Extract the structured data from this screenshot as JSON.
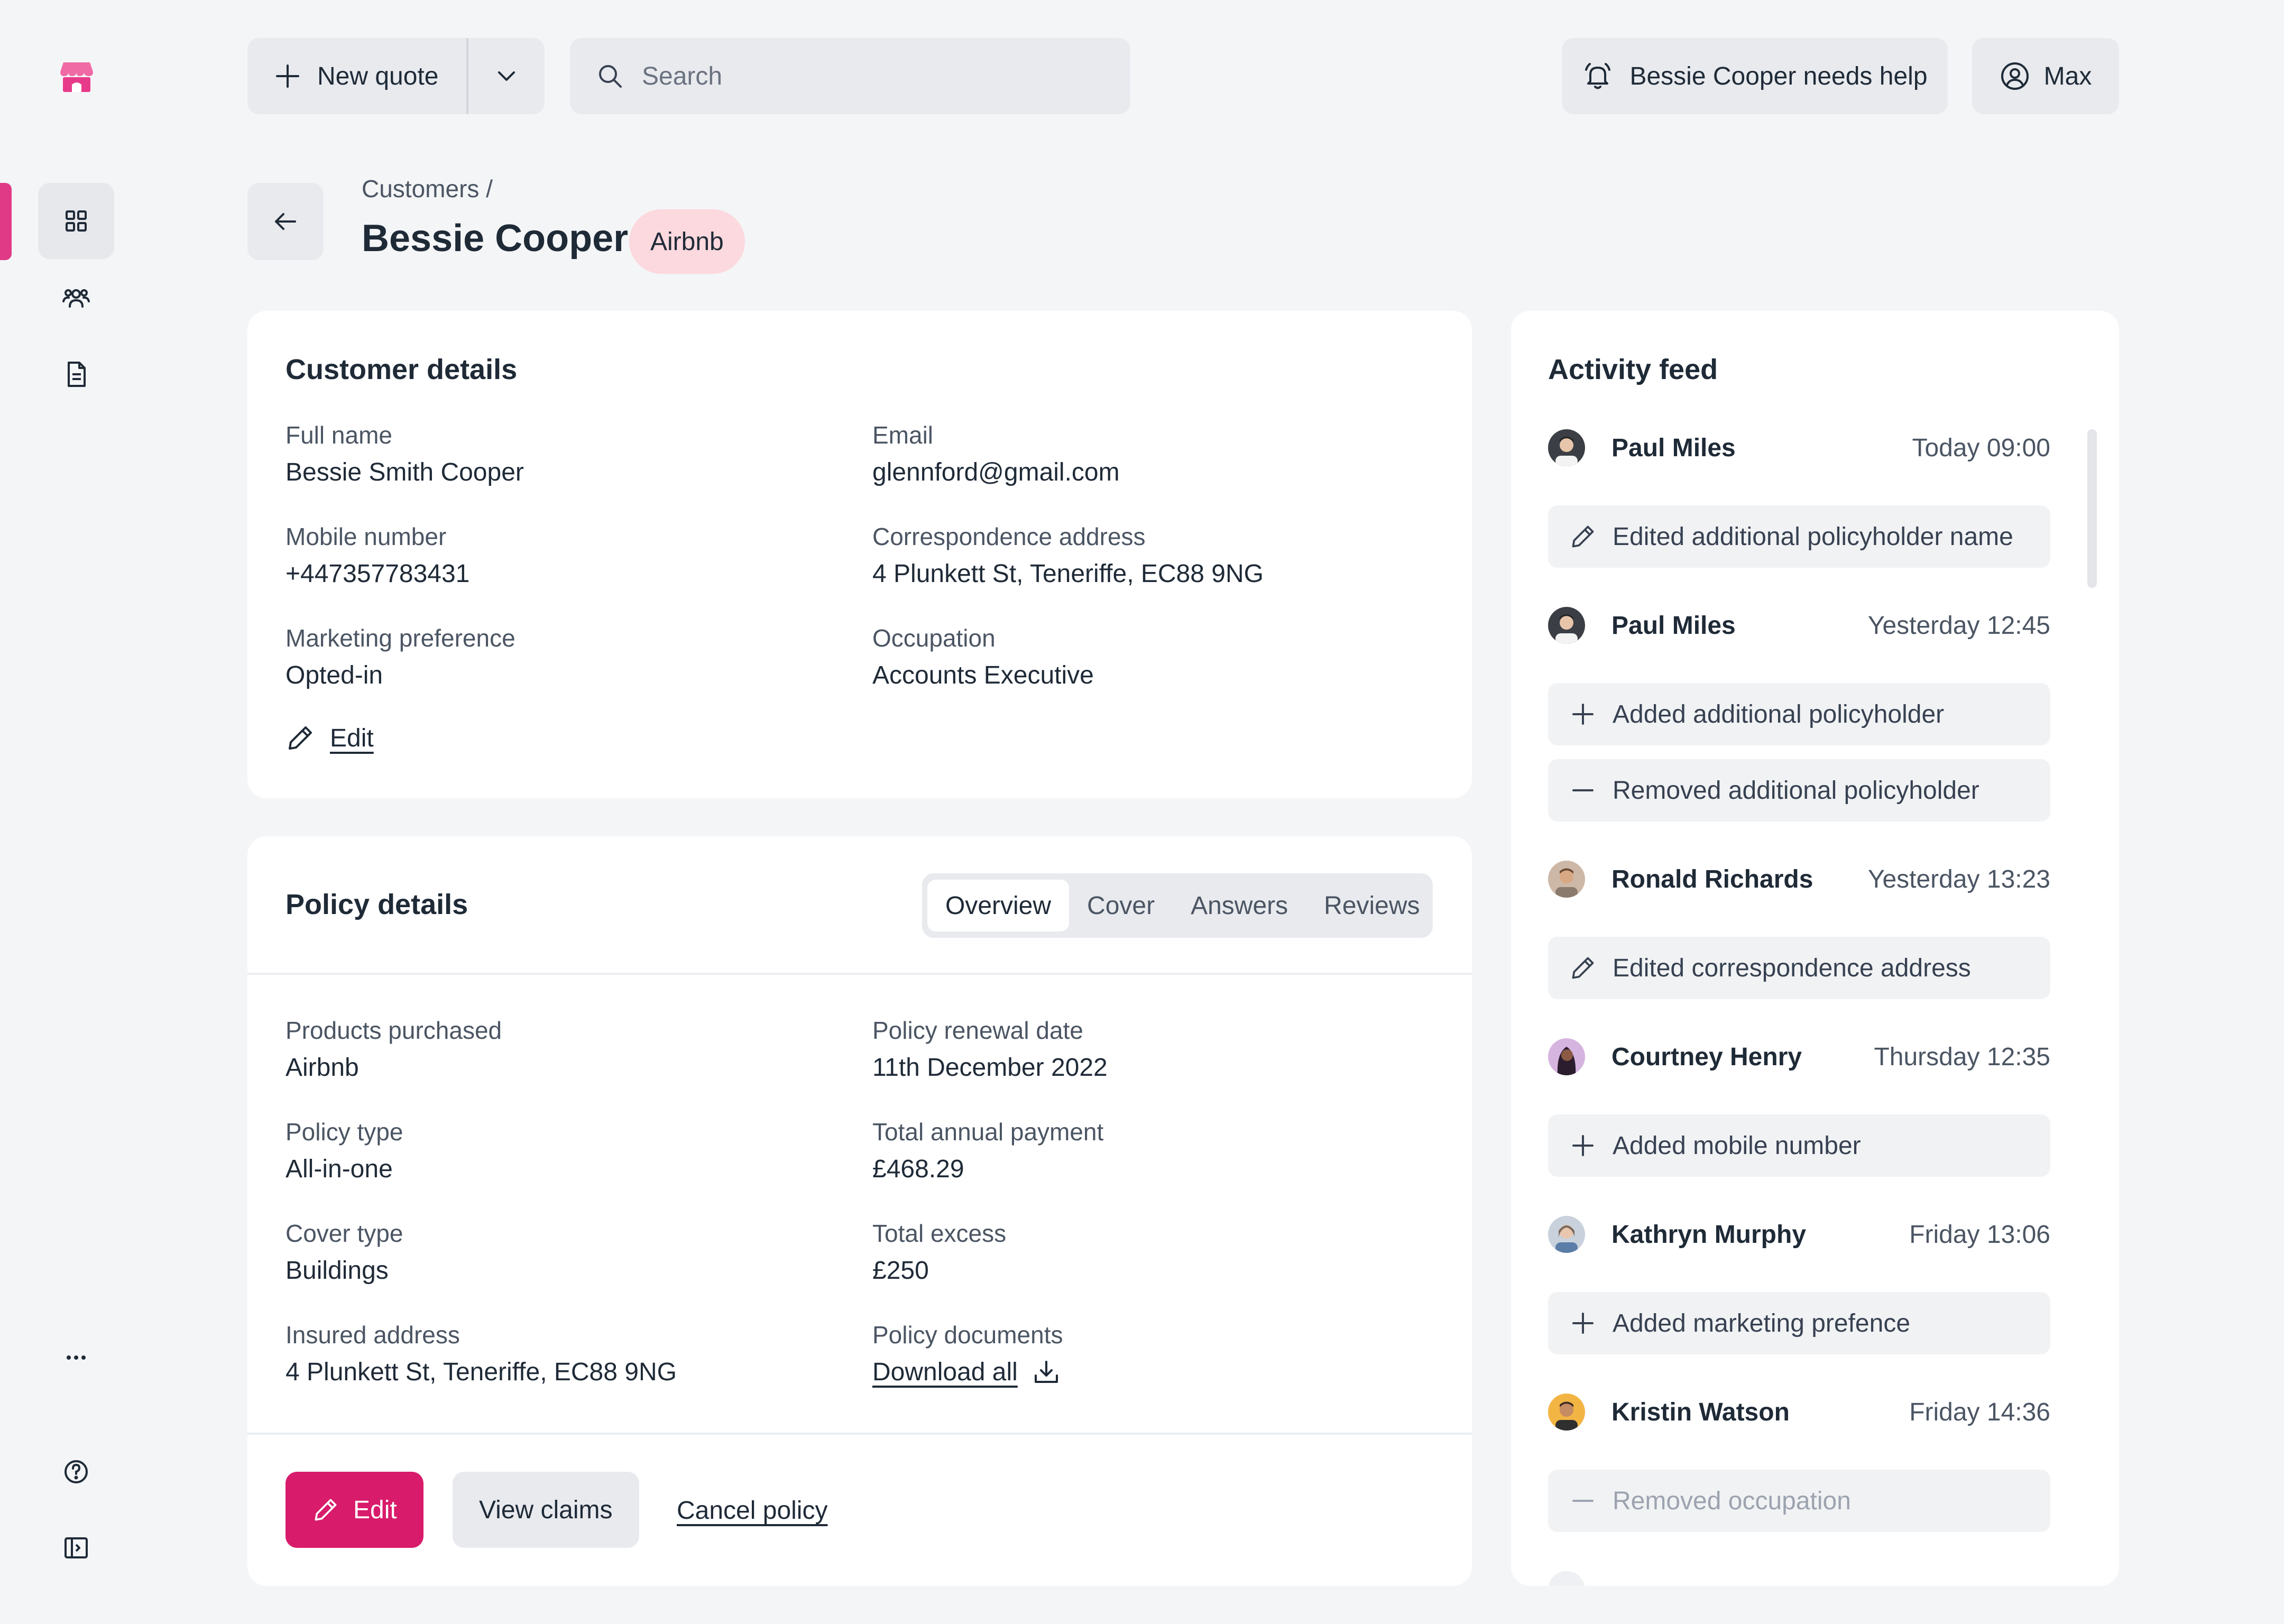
{
  "topbar": {
    "new_quote_label": "New quote",
    "search_placeholder": "Search",
    "help_alert_label": "Bessie Cooper needs help",
    "user_label": "Max"
  },
  "header": {
    "breadcrumb": "Customers /",
    "title": "Bessie Cooper",
    "tag": "Airbnb"
  },
  "customer_details": {
    "title": "Customer details",
    "fields": [
      {
        "label": "Full name",
        "value": "Bessie Smith Cooper"
      },
      {
        "label": "Email",
        "value": "glennford@gmail.com"
      },
      {
        "label": "Mobile number",
        "value": "+447357783431"
      },
      {
        "label": "Correspondence address",
        "value": "4 Plunkett St, Teneriffe, EC88 9NG"
      },
      {
        "label": "Marketing preference",
        "value": "Opted-in"
      },
      {
        "label": "Occupation",
        "value": "Accounts Executive"
      }
    ],
    "edit_label": "Edit"
  },
  "policy_details": {
    "title": "Policy details",
    "tabs": [
      "Overview",
      "Cover",
      "Answers",
      "Reviews"
    ],
    "active_tab": "Overview",
    "fields": [
      {
        "label": "Products purchased",
        "value": "Airbnb"
      },
      {
        "label": "Policy renewal date",
        "value": "11th December 2022"
      },
      {
        "label": "Policy type",
        "value": "All-in-one"
      },
      {
        "label": "Total annual payment",
        "value": "£468.29"
      },
      {
        "label": "Cover type",
        "value": "Buildings"
      },
      {
        "label": "Total excess",
        "value": "£250"
      },
      {
        "label": "Insured address",
        "value": "4 Plunkett St, Teneriffe, EC88 9NG"
      },
      {
        "label": "Policy documents",
        "value": "Download all"
      }
    ],
    "actions": {
      "edit": "Edit",
      "view_claims": "View claims",
      "cancel": "Cancel policy"
    }
  },
  "activity_feed": {
    "title": "Activity feed",
    "entries": [
      {
        "name": "Paul Miles",
        "time": "Today 09:00",
        "items": [
          {
            "icon": "pencil-icon",
            "text": "Edited additional policyholder name"
          }
        ]
      },
      {
        "name": "Paul Miles",
        "time": "Yesterday 12:45",
        "items": [
          {
            "icon": "plus-icon",
            "text": "Added additional policyholder"
          },
          {
            "icon": "minus-icon",
            "text": "Removed additional policyholder"
          }
        ]
      },
      {
        "name": "Ronald Richards",
        "time": "Yesterday 13:23",
        "items": [
          {
            "icon": "pencil-icon",
            "text": "Edited correspondence address"
          }
        ]
      },
      {
        "name": "Courtney Henry",
        "time": "Thursday 12:35",
        "items": [
          {
            "icon": "plus-icon",
            "text": "Added mobile number"
          }
        ]
      },
      {
        "name": "Kathryn Murphy",
        "time": "Friday 13:06",
        "items": [
          {
            "icon": "plus-icon",
            "text": "Added marketing prefence"
          }
        ]
      },
      {
        "name": "Kristin Watson",
        "time": "Friday 14:36",
        "items": [
          {
            "icon": "minus-icon",
            "text": "Removed occupation"
          }
        ]
      }
    ]
  },
  "colors": {
    "brand": "#d81b6a",
    "rail_indicator": "#e03a86",
    "tag_background": "#fcd9de",
    "page_background": "#f4f5f7"
  },
  "rail": {
    "icons": [
      "store-logo-icon",
      "dashboard-grid-icon",
      "customers-icon",
      "document-icon",
      "more-dots-icon",
      "help-circle-icon",
      "sidebar-toggle-icon"
    ]
  }
}
